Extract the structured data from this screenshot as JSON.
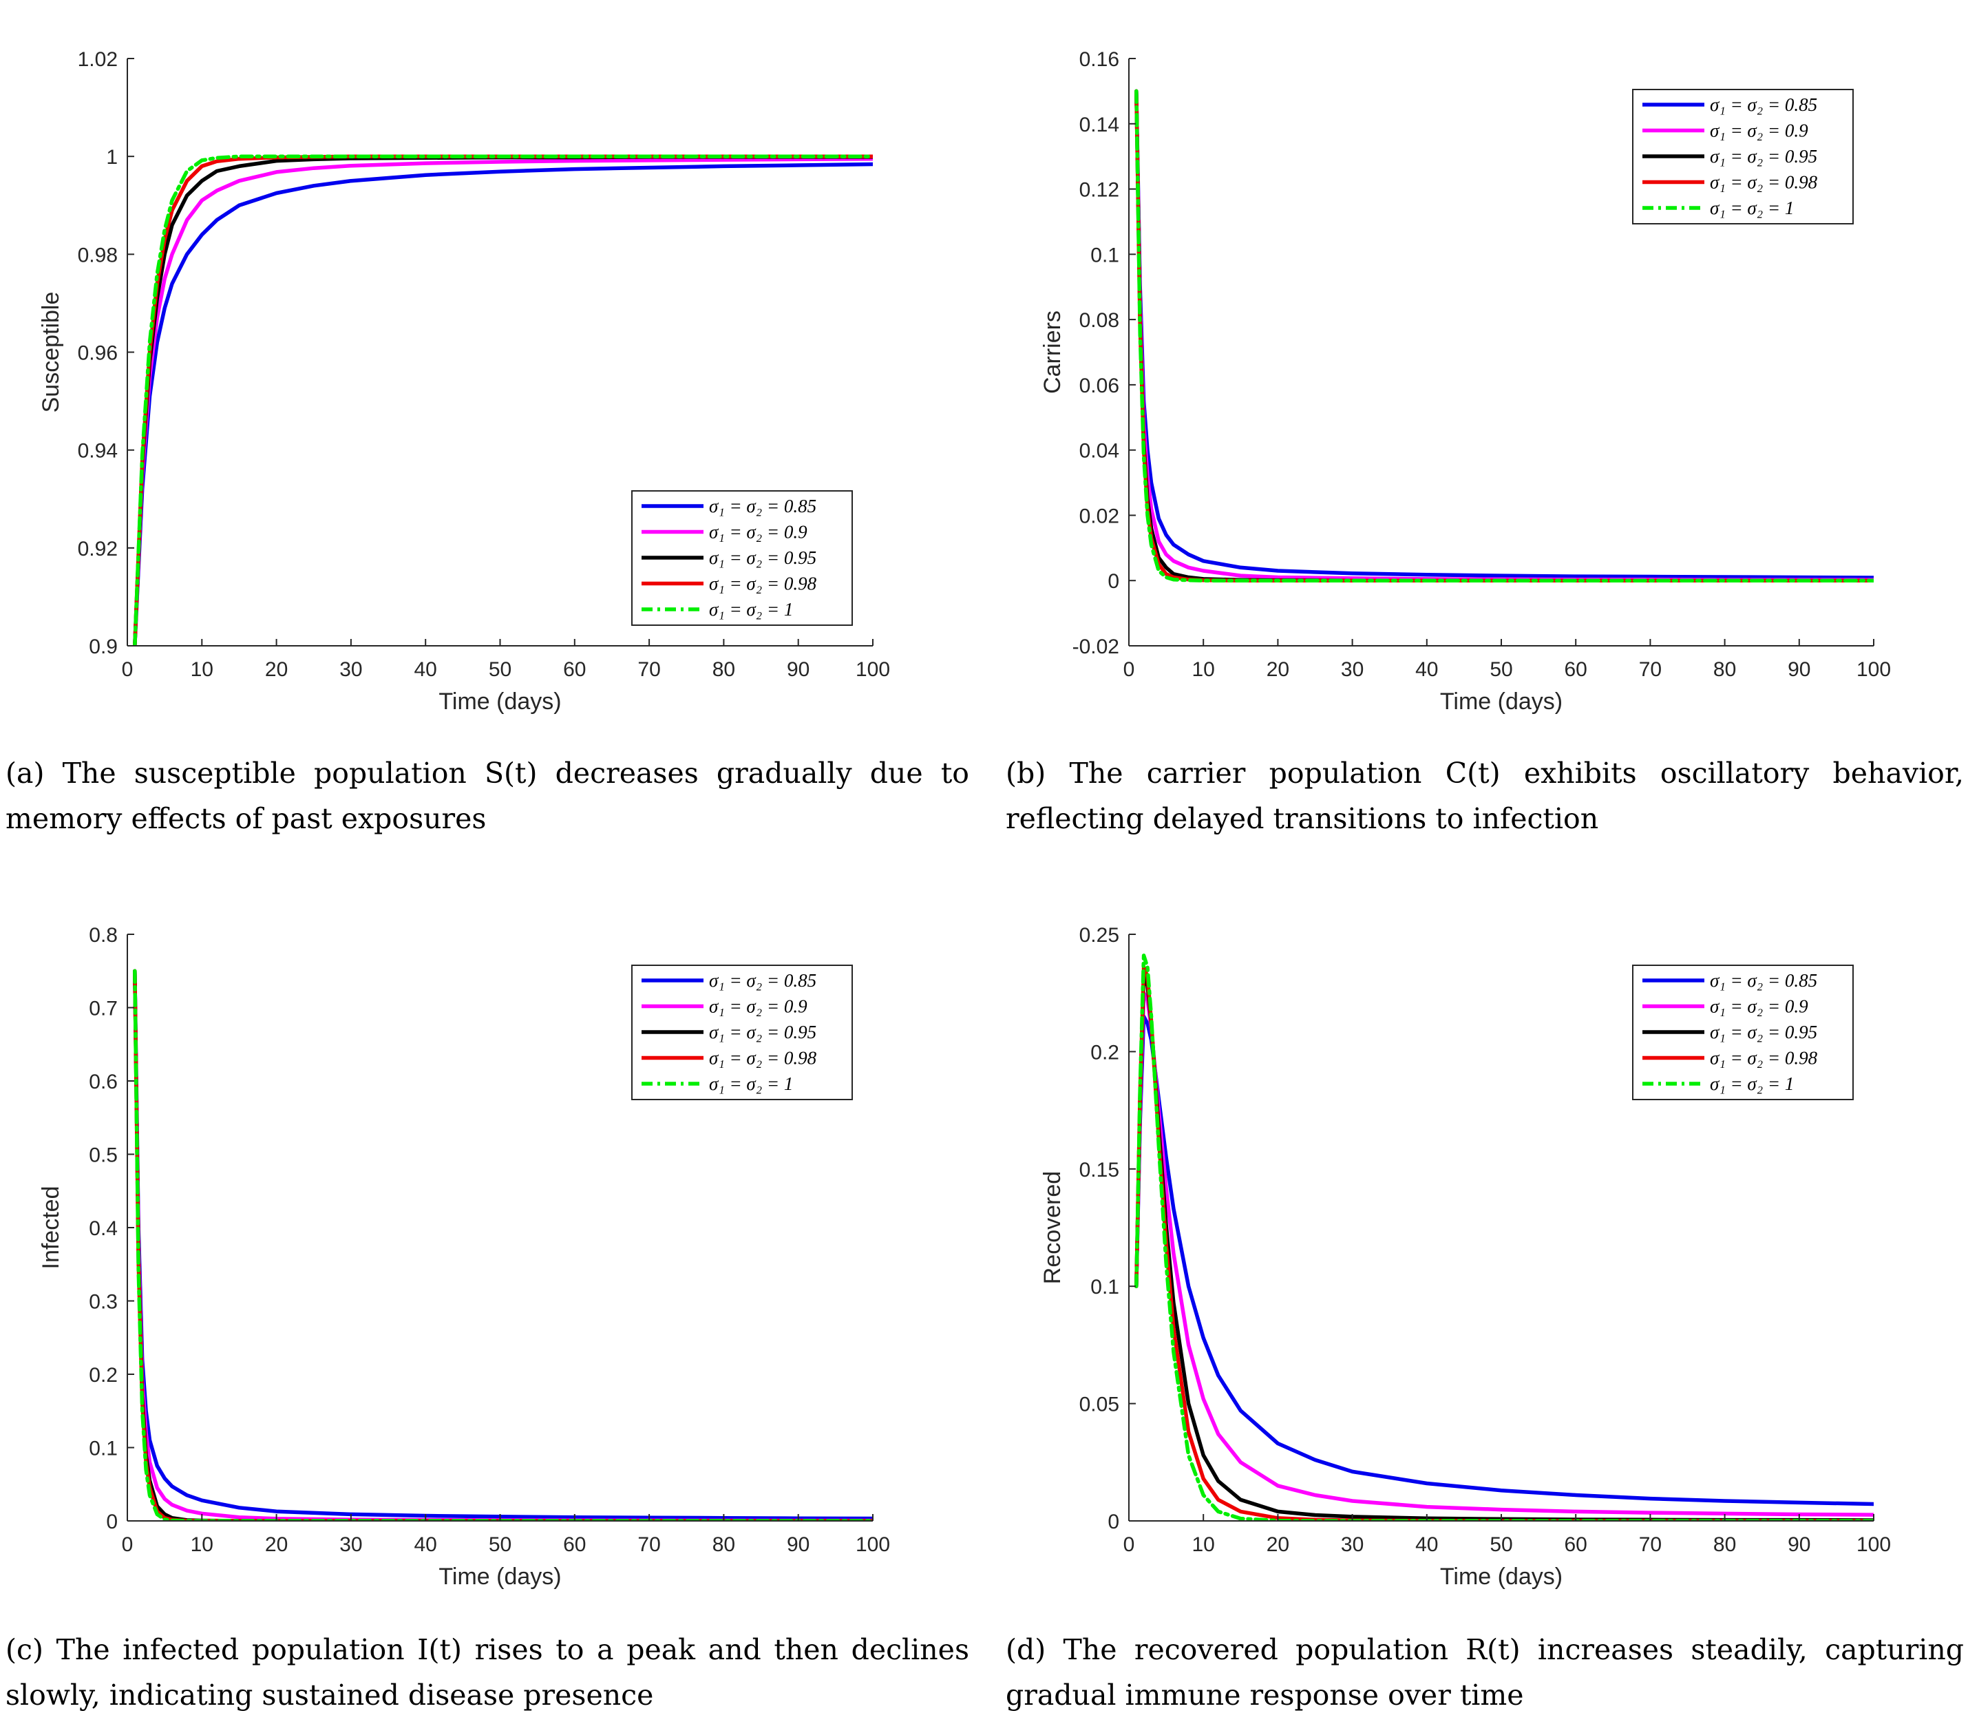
{
  "figure": {
    "legend_entries": [
      "σ₁ = σ₂ = 0.85",
      "σ₁ = σ₂ = 0.9",
      "σ₁ = σ₂ = 0.95",
      "σ₁ = σ₂ = 0.98",
      "σ₁ = σ₂ = 1"
    ],
    "series_colors": [
      "#0000ee",
      "#ff00ff",
      "#000000",
      "#ee0000",
      "#00ee00"
    ],
    "series_styles": [
      "solid",
      "solid",
      "solid",
      "solid",
      "dashdot"
    ]
  },
  "captions": {
    "a": "(a) The susceptible population S(t) decreases gradually due to memory effects of past exposures",
    "b": "(b) The carrier population C(t) exhibits oscillatory behavior, reflecting delayed transitions to infection",
    "c": "(c) The infected population I(t) rises to a peak and then declines slowly, indicating sustained disease presence",
    "d": "(d) The recovered population R(t) increases steadily, capturing gradual immune response over time"
  },
  "chart_data": [
    {
      "type": "line",
      "xlabel": "Time (days)",
      "ylabel": "Susceptible",
      "xlim": [
        0,
        100
      ],
      "ylim": [
        0.9,
        1.02
      ],
      "xticks": [
        "0",
        "10",
        "20",
        "30",
        "40",
        "50",
        "60",
        "70",
        "80",
        "90",
        "100"
      ],
      "yticks": [
        "0.9",
        "0.92",
        "0.94",
        "0.96",
        "0.98",
        "1",
        "1.02"
      ],
      "legend_position": "bottom-right",
      "grid": false,
      "x": [
        1,
        2,
        3,
        4,
        5,
        6,
        8,
        10,
        12,
        15,
        20,
        25,
        30,
        40,
        50,
        60,
        70,
        80,
        90,
        100
      ],
      "series": [
        {
          "name": "σ₁ = σ₂ = 0.85",
          "values": [
            0.9,
            0.932,
            0.951,
            0.962,
            0.969,
            0.974,
            0.98,
            0.984,
            0.987,
            0.99,
            0.9925,
            0.994,
            0.995,
            0.9962,
            0.9969,
            0.9974,
            0.9977,
            0.998,
            0.9982,
            0.9984
          ]
        },
        {
          "name": "σ₁ = σ₂ = 0.9",
          "values": [
            0.9,
            0.935,
            0.955,
            0.967,
            0.975,
            0.98,
            0.987,
            0.991,
            0.993,
            0.995,
            0.9968,
            0.9976,
            0.9981,
            0.9986,
            0.9989,
            0.9991,
            0.9992,
            0.9993,
            0.9994,
            0.9995
          ]
        },
        {
          "name": "σ₁ = σ₂ = 0.95",
          "values": [
            0.9,
            0.937,
            0.958,
            0.971,
            0.98,
            0.986,
            0.992,
            0.995,
            0.997,
            0.998,
            0.9991,
            0.9994,
            0.9996,
            0.9997,
            0.9998,
            0.9998,
            0.9999,
            0.9999,
            0.9999,
            0.9999
          ]
        },
        {
          "name": "σ₁ = σ₂ = 0.98",
          "values": [
            0.9,
            0.938,
            0.96,
            0.974,
            0.983,
            0.989,
            0.995,
            0.998,
            0.999,
            0.9995,
            0.9998,
            0.9999,
            1.0,
            1.0,
            1.0,
            1.0,
            1.0,
            1.0,
            1.0,
            1.0
          ]
        },
        {
          "name": "σ₁ = σ₂ = 1",
          "values": [
            0.9,
            0.939,
            0.962,
            0.976,
            0.985,
            0.991,
            0.997,
            0.9992,
            0.9997,
            1.0,
            1.0,
            1.0,
            1.0,
            1.0,
            1.0,
            1.0,
            1.0,
            1.0,
            1.0,
            1.0
          ]
        }
      ]
    },
    {
      "type": "line",
      "xlabel": "Time (days)",
      "ylabel": "Carriers",
      "xlim": [
        0,
        100
      ],
      "ylim": [
        -0.02,
        0.16
      ],
      "xticks": [
        "0",
        "10",
        "20",
        "30",
        "40",
        "50",
        "60",
        "70",
        "80",
        "90",
        "100"
      ],
      "yticks": [
        "-0.02",
        "0",
        "0.02",
        "0.04",
        "0.06",
        "0.08",
        "0.1",
        "0.12",
        "0.14",
        "0.16"
      ],
      "legend_position": "top-right",
      "grid": false,
      "x": [
        1,
        1.5,
        2,
        2.5,
        3,
        4,
        5,
        6,
        8,
        10,
        15,
        20,
        30,
        40,
        50,
        60,
        70,
        80,
        90,
        100
      ],
      "series": [
        {
          "name": "σ₁ = σ₂ = 0.85",
          "values": [
            0.15,
            0.09,
            0.055,
            0.04,
            0.03,
            0.019,
            0.014,
            0.011,
            0.008,
            0.006,
            0.004,
            0.003,
            0.0022,
            0.0018,
            0.0015,
            0.0013,
            0.0012,
            0.0011,
            0.001,
            0.0009
          ]
        },
        {
          "name": "σ₁ = σ₂ = 0.9",
          "values": [
            0.15,
            0.085,
            0.048,
            0.032,
            0.022,
            0.012,
            0.008,
            0.006,
            0.004,
            0.003,
            0.0015,
            0.001,
            0.0007,
            0.0005,
            0.0004,
            0.0003,
            0.0003,
            0.0002,
            0.0002,
            0.0002
          ]
        },
        {
          "name": "σ₁ = σ₂ = 0.95",
          "values": [
            0.15,
            0.08,
            0.042,
            0.025,
            0.016,
            0.007,
            0.004,
            0.002,
            0.001,
            0.0005,
            0.0002,
            0.0001,
            0,
            0,
            0,
            0,
            0,
            0,
            0,
            0
          ]
        },
        {
          "name": "σ₁ = σ₂ = 0.98",
          "values": [
            0.15,
            0.078,
            0.04,
            0.022,
            0.013,
            0.005,
            0.002,
            0.001,
            0.0003,
            0.0001,
            0,
            0,
            0,
            0,
            0,
            0,
            0,
            0,
            0,
            0
          ]
        },
        {
          "name": "σ₁ = σ₂ = 1",
          "values": [
            0.15,
            0.076,
            0.038,
            0.02,
            0.011,
            0.003,
            0.001,
            0.0003,
            0.0001,
            0,
            0,
            0,
            0,
            0,
            0,
            0,
            0,
            0,
            0,
            0
          ]
        }
      ]
    },
    {
      "type": "line",
      "xlabel": "Time (days)",
      "ylabel": "Infected",
      "xlim": [
        0,
        100
      ],
      "ylim": [
        0,
        0.8
      ],
      "xticks": [
        "0",
        "10",
        "20",
        "30",
        "40",
        "50",
        "60",
        "70",
        "80",
        "90",
        "100"
      ],
      "yticks": [
        "0",
        "0.1",
        "0.2",
        "0.3",
        "0.4",
        "0.5",
        "0.6",
        "0.7",
        "0.8"
      ],
      "legend_position": "top-right",
      "grid": false,
      "x": [
        1,
        1.5,
        2,
        2.5,
        3,
        4,
        5,
        6,
        8,
        10,
        15,
        20,
        30,
        40,
        50,
        60,
        70,
        80,
        90,
        100
      ],
      "series": [
        {
          "name": "σ₁ = σ₂ = 0.85",
          "values": [
            0.75,
            0.4,
            0.22,
            0.15,
            0.11,
            0.075,
            0.058,
            0.047,
            0.035,
            0.028,
            0.018,
            0.013,
            0.009,
            0.007,
            0.0058,
            0.005,
            0.0045,
            0.004,
            0.0036,
            0.0033
          ]
        },
        {
          "name": "σ₁ = σ₂ = 0.9",
          "values": [
            0.75,
            0.38,
            0.19,
            0.12,
            0.08,
            0.045,
            0.03,
            0.022,
            0.014,
            0.01,
            0.005,
            0.003,
            0.0018,
            0.0013,
            0.001,
            0.0008,
            0.0007,
            0.0006,
            0.0005,
            0.0005
          ]
        },
        {
          "name": "σ₁ = σ₂ = 0.95",
          "values": [
            0.75,
            0.36,
            0.17,
            0.09,
            0.055,
            0.02,
            0.009,
            0.004,
            0.001,
            0.0005,
            0.0001,
            0,
            0,
            0,
            0,
            0,
            0,
            0,
            0,
            0
          ]
        },
        {
          "name": "σ₁ = σ₂ = 0.98",
          "values": [
            0.75,
            0.35,
            0.16,
            0.08,
            0.045,
            0.013,
            0.004,
            0.0015,
            0.0003,
            0.0001,
            0,
            0,
            0,
            0,
            0,
            0,
            0,
            0,
            0,
            0
          ]
        },
        {
          "name": "σ₁ = σ₂ = 1",
          "values": [
            0.75,
            0.34,
            0.15,
            0.07,
            0.035,
            0.009,
            0.002,
            0.0006,
            0.0001,
            0,
            0,
            0,
            0,
            0,
            0,
            0,
            0,
            0,
            0,
            0
          ]
        }
      ]
    },
    {
      "type": "line",
      "xlabel": "Time (days)",
      "ylabel": "Recovered",
      "xlim": [
        0,
        100
      ],
      "ylim": [
        0,
        0.25
      ],
      "xticks": [
        "0",
        "10",
        "20",
        "30",
        "40",
        "50",
        "60",
        "70",
        "80",
        "90",
        "100"
      ],
      "yticks": [
        "0",
        "0.05",
        "0.1",
        "0.15",
        "0.2",
        "0.25"
      ],
      "legend_position": "top-right",
      "grid": false,
      "x": [
        1,
        1.5,
        2,
        2.5,
        3,
        4,
        5,
        6,
        8,
        10,
        12,
        15,
        20,
        25,
        30,
        40,
        50,
        60,
        70,
        80,
        90,
        100
      ],
      "series": [
        {
          "name": "σ₁ = σ₂ = 0.85",
          "values": [
            0.1,
            0.17,
            0.215,
            0.212,
            0.205,
            0.18,
            0.155,
            0.133,
            0.1,
            0.078,
            0.062,
            0.047,
            0.033,
            0.026,
            0.021,
            0.016,
            0.013,
            0.011,
            0.0095,
            0.0085,
            0.0078,
            0.0072
          ]
        },
        {
          "name": "σ₁ = σ₂ = 0.9",
          "values": [
            0.1,
            0.175,
            0.225,
            0.222,
            0.21,
            0.175,
            0.142,
            0.114,
            0.075,
            0.052,
            0.037,
            0.025,
            0.015,
            0.011,
            0.0085,
            0.006,
            0.0048,
            0.004,
            0.0035,
            0.0031,
            0.0028,
            0.0026
          ]
        },
        {
          "name": "σ₁ = σ₂ = 0.95",
          "values": [
            0.1,
            0.18,
            0.232,
            0.228,
            0.212,
            0.168,
            0.126,
            0.093,
            0.05,
            0.028,
            0.017,
            0.009,
            0.004,
            0.0025,
            0.0018,
            0.0011,
            0.0008,
            0.0006,
            0.0005,
            0.0004,
            0.0004,
            0.0003
          ]
        },
        {
          "name": "σ₁ = σ₂ = 0.98",
          "values": [
            0.1,
            0.182,
            0.236,
            0.232,
            0.213,
            0.163,
            0.118,
            0.082,
            0.038,
            0.018,
            0.009,
            0.004,
            0.0012,
            0.0005,
            0.0002,
            0.0001,
            0,
            0,
            0,
            0,
            0,
            0
          ]
        },
        {
          "name": "σ₁ = σ₂ = 1",
          "values": [
            0.1,
            0.184,
            0.241,
            0.236,
            0.215,
            0.16,
            0.11,
            0.072,
            0.028,
            0.011,
            0.004,
            0.001,
            0.0001,
            0,
            0,
            0,
            0,
            0,
            0,
            0,
            0,
            0
          ]
        }
      ]
    }
  ]
}
